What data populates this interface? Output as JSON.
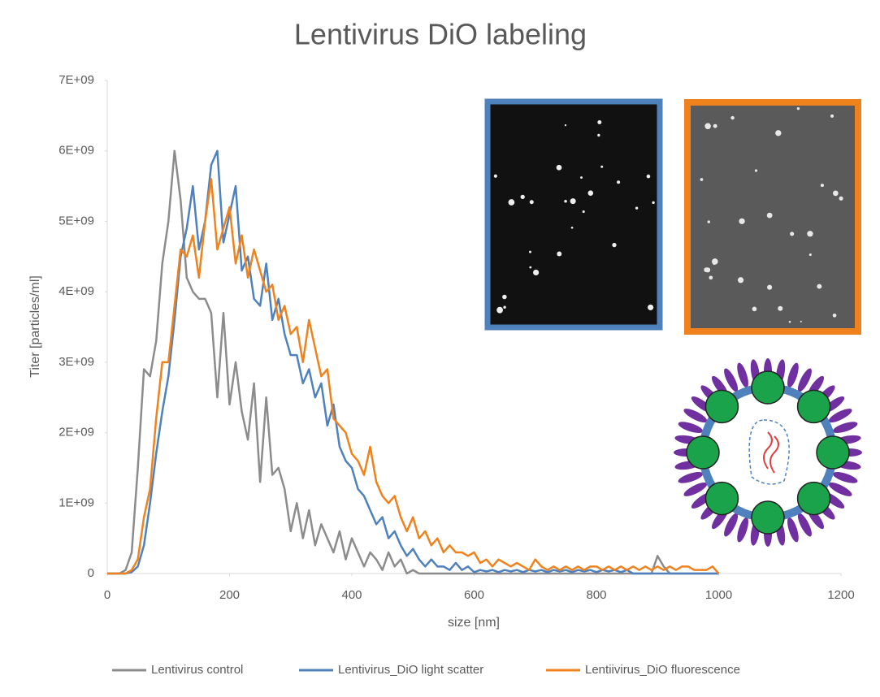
{
  "chart_data": {
    "type": "line",
    "title": "Lentivirus DiO labeling",
    "x_label": "size [nm]",
    "y_label": "Titer  [particles/ml]",
    "xlim": [
      0,
      1200
    ],
    "xticks": [
      0,
      200,
      400,
      600,
      800,
      1000,
      1200
    ],
    "ylim": [
      0,
      7000000000.0
    ],
    "yticks": [
      0,
      {
        "value": 1000000000.0,
        "label": "1E+09"
      },
      {
        "value": 2000000000.0,
        "label": "2E+09"
      },
      {
        "value": 3000000000.0,
        "label": "3E+09"
      },
      {
        "value": 4000000000.0,
        "label": "4E+09"
      },
      {
        "value": 5000000000.0,
        "label": "5E+09"
      },
      {
        "value": 6000000000.0,
        "label": "6E+09"
      },
      {
        "value": 7000000000.0,
        "label": "7E+09"
      }
    ],
    "grid": false,
    "legend": "bottom",
    "x": [
      0,
      10,
      20,
      30,
      40,
      50,
      60,
      70,
      80,
      90,
      100,
      110,
      120,
      130,
      140,
      150,
      160,
      170,
      180,
      190,
      200,
      210,
      220,
      230,
      240,
      250,
      260,
      270,
      280,
      290,
      300,
      310,
      320,
      330,
      340,
      350,
      360,
      370,
      380,
      390,
      400,
      410,
      420,
      430,
      440,
      450,
      460,
      470,
      480,
      490,
      500,
      510,
      520,
      530,
      540,
      550,
      560,
      570,
      580,
      590,
      600,
      610,
      620,
      630,
      640,
      650,
      660,
      670,
      680,
      690,
      700,
      710,
      720,
      730,
      740,
      750,
      760,
      770,
      780,
      790,
      800,
      810,
      820,
      830,
      840,
      850,
      860,
      870,
      880,
      890,
      900,
      910,
      920,
      930,
      940,
      950,
      960,
      970,
      980,
      990,
      1000
    ],
    "series": [
      {
        "name": "Lentivirus control",
        "color": "#8c8c8c",
        "values": [
          0,
          0,
          0,
          50000000.0,
          300000000.0,
          1500000000.0,
          2900000000.0,
          2800000000.0,
          3300000000.0,
          4400000000.0,
          5000000000.0,
          6000000000.0,
          5300000000.0,
          4200000000.0,
          4000000000.0,
          3900000000.0,
          3900000000.0,
          3700000000.0,
          2500000000.0,
          3700000000.0,
          2400000000.0,
          3000000000.0,
          2300000000.0,
          1900000000.0,
          2700000000.0,
          1300000000.0,
          2500000000.0,
          1400000000.0,
          1500000000.0,
          1200000000.0,
          600000000.0,
          1000000000.0,
          500000000.0,
          900000000.0,
          400000000.0,
          700000000.0,
          500000000.0,
          300000000.0,
          600000000.0,
          200000000.0,
          500000000.0,
          300000000.0,
          100000000.0,
          300000000.0,
          200000000.0,
          50000000.0,
          300000000.0,
          100000000.0,
          200000000.0,
          0,
          50000000.0,
          0,
          0,
          0,
          0,
          0,
          0,
          0,
          0,
          0,
          0,
          0,
          0,
          0,
          0,
          0,
          0,
          0,
          0,
          0,
          0,
          0,
          0,
          0,
          0,
          0,
          0,
          0,
          0,
          0,
          0,
          0,
          0,
          0,
          0,
          0,
          0,
          0,
          0,
          0,
          250000000.0,
          100000000.0,
          0,
          0,
          0,
          0,
          0,
          0,
          0,
          0,
          0
        ]
      },
      {
        "name": "Lentivirus_DiO light scatter",
        "color": "#4f81bd",
        "values": [
          0,
          0,
          0,
          0,
          20000000.0,
          100000000.0,
          400000000.0,
          1000000000.0,
          1700000000.0,
          2300000000.0,
          2800000000.0,
          3600000000.0,
          4500000000.0,
          4900000000.0,
          5500000000.0,
          4600000000.0,
          5000000000.0,
          5800000000.0,
          6000000000.0,
          4700000000.0,
          5100000000.0,
          5500000000.0,
          4300000000.0,
          4500000000.0,
          3900000000.0,
          3800000000.0,
          4400000000.0,
          3600000000.0,
          3900000000.0,
          3400000000.0,
          3100000000.0,
          3100000000.0,
          2700000000.0,
          2900000000.0,
          2500000000.0,
          2700000000.0,
          2100000000.0,
          2400000000.0,
          1800000000.0,
          1600000000.0,
          1500000000.0,
          1200000000.0,
          1100000000.0,
          900000000.0,
          700000000.0,
          800000000.0,
          500000000.0,
          600000000.0,
          400000000.0,
          250000000.0,
          350000000.0,
          200000000.0,
          100000000.0,
          200000000.0,
          100000000.0,
          100000000.0,
          50000000.0,
          150000000.0,
          50000000.0,
          100000000.0,
          20000000.0,
          50000000.0,
          30000000.0,
          50000000.0,
          20000000.0,
          50000000.0,
          30000000.0,
          50000000.0,
          20000000.0,
          50000000.0,
          30000000.0,
          50000000.0,
          20000000.0,
          50000000.0,
          30000000.0,
          50000000.0,
          20000000.0,
          50000000.0,
          30000000.0,
          50000000.0,
          20000000.0,
          50000000.0,
          30000000.0,
          50000000.0,
          20000000.0,
          50000000.0,
          0,
          0,
          0,
          0,
          0,
          0,
          0,
          0,
          0,
          0,
          0,
          0,
          0,
          0,
          0
        ]
      },
      {
        "name": "Lentiivirus_DiO fluorescence",
        "color": "#f0821e",
        "values": [
          0,
          0,
          0,
          0,
          50000000.0,
          200000000.0,
          800000000.0,
          1200000000.0,
          2200000000.0,
          3000000000.0,
          3000000000.0,
          3800000000.0,
          4600000000.0,
          4500000000.0,
          4800000000.0,
          4200000000.0,
          5000000000.0,
          5600000000.0,
          4600000000.0,
          4900000000.0,
          5200000000.0,
          4400000000.0,
          4800000000.0,
          4200000000.0,
          4600000000.0,
          4300000000.0,
          4000000000.0,
          4100000000.0,
          3600000000.0,
          3800000000.0,
          3400000000.0,
          3500000000.0,
          3000000000.0,
          3600000000.0,
          3200000000.0,
          2800000000.0,
          2900000000.0,
          2200000000.0,
          2100000000.0,
          2000000000.0,
          1700000000.0,
          1600000000.0,
          1400000000.0,
          1800000000.0,
          1300000000.0,
          1100000000.0,
          1000000000.0,
          1100000000.0,
          800000000.0,
          600000000.0,
          800000000.0,
          500000000.0,
          600000000.0,
          400000000.0,
          500000000.0,
          300000000.0,
          400000000.0,
          300000000.0,
          300000000.0,
          250000000.0,
          300000000.0,
          150000000.0,
          200000000.0,
          100000000.0,
          200000000.0,
          150000000.0,
          100000000.0,
          150000000.0,
          100000000.0,
          50000000.0,
          200000000.0,
          100000000.0,
          50000000.0,
          100000000.0,
          50000000.0,
          100000000.0,
          50000000.0,
          100000000.0,
          50000000.0,
          100000000.0,
          100000000.0,
          50000000.0,
          100000000.0,
          50000000.0,
          100000000.0,
          50000000.0,
          100000000.0,
          50000000.0,
          100000000.0,
          50000000.0,
          100000000.0,
          50000000.0,
          100000000.0,
          50000000.0,
          100000000.0,
          100000000.0,
          50000000.0,
          50000000.0,
          50000000.0,
          100000000.0,
          0
        ]
      }
    ]
  }
}
